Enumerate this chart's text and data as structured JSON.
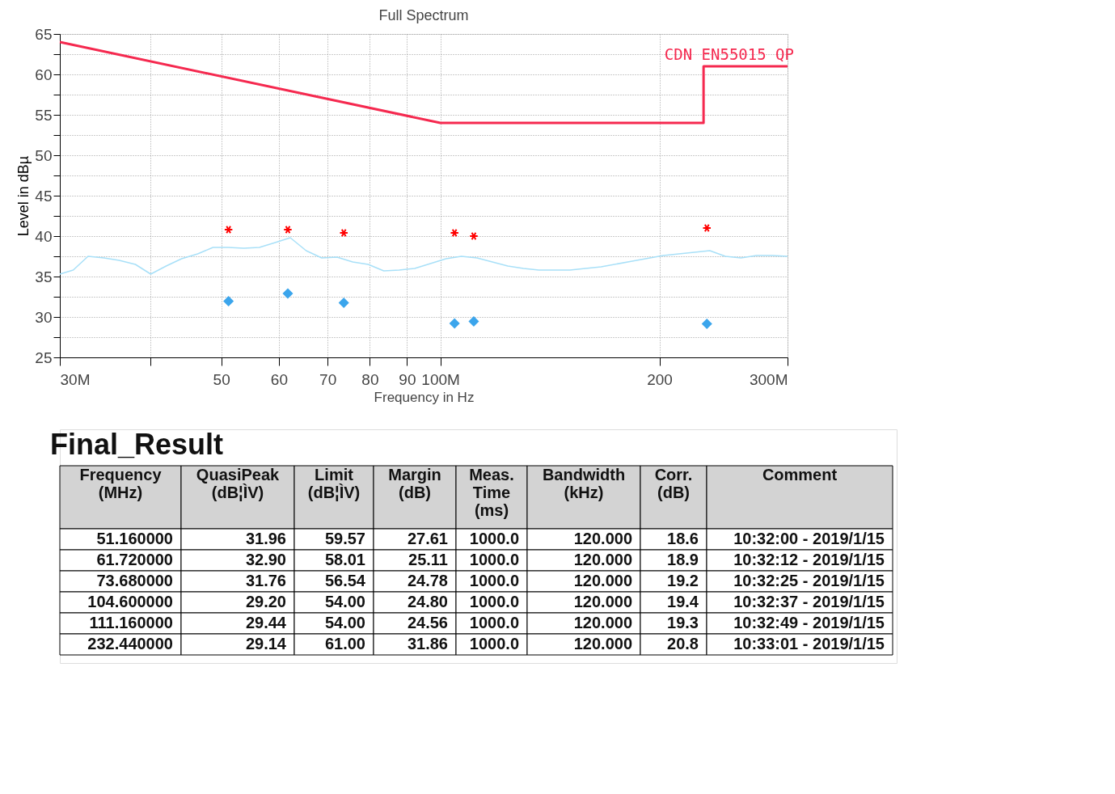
{
  "chart_data": {
    "type": "line",
    "title": "Full Spectrum",
    "xlabel": "Frequency in Hz",
    "ylabel": "Level in dBµ",
    "log": "x",
    "grid": true,
    "legend": false,
    "xlim": [
      30,
      300
    ],
    "xticks": [
      {
        "value": 30,
        "label": "30M"
      },
      {
        "value": 40,
        "label": null
      },
      50,
      60,
      70,
      80,
      90,
      {
        "value": 100,
        "label": "100M"
      },
      200,
      {
        "value": 300,
        "label": "300M"
      }
    ],
    "ylim": [
      25,
      65
    ],
    "yticks": [
      25,
      {
        "value": 27.5,
        "label": null
      },
      30,
      {
        "value": 32.5,
        "label": null
      },
      35,
      {
        "value": 37.5,
        "label": null
      },
      40,
      {
        "value": 42.5,
        "label": null
      },
      45,
      {
        "value": 47.5,
        "label": null
      },
      50,
      {
        "value": 52.5,
        "label": null
      },
      55,
      {
        "value": 57.5,
        "label": null
      },
      60,
      {
        "value": 62.5,
        "label": null
      },
      65
    ],
    "series": [
      {
        "name": "CDN EN55015 QP",
        "color": "#f5294f",
        "x": [
          30,
          100,
          230,
          230,
          300
        ],
        "values": [
          64,
          54,
          54,
          61,
          61
        ]
      },
      {
        "color": "#a8e0f8",
        "x": [
          30.0,
          31.3,
          32.8,
          34.5,
          36.2,
          38.1,
          40.0,
          42.0,
          44.1,
          46.4,
          48.7,
          51.1,
          53.7,
          56.4,
          59.3,
          62.2,
          65.4,
          68.7,
          72.1,
          75.8,
          79.6,
          83.6,
          87.8,
          92.2,
          96.9,
          101.8,
          106.9,
          112.3,
          117.9,
          123.8,
          130.1,
          136.6,
          150.7,
          166.3,
          183.5,
          202.5,
          223.4,
          234.6,
          246.4,
          258.9,
          271.9,
          285.7,
          300.0
        ],
        "values": [
          35.3,
          35.8,
          37.5,
          37.3,
          37.0,
          36.5,
          35.3,
          36.3,
          37.2,
          37.8,
          38.6,
          38.6,
          38.5,
          38.6,
          39.2,
          39.8,
          38.2,
          37.3,
          37.4,
          36.8,
          36.5,
          35.7,
          35.8,
          36.0,
          36.6,
          37.2,
          37.5,
          37.3,
          36.8,
          36.3,
          36.0,
          35.8,
          35.8,
          36.2,
          36.9,
          37.6,
          38.0,
          38.2,
          37.5,
          37.3,
          37.6,
          37.6,
          37.5
        ]
      },
      {
        "type": "scatter",
        "marker": "cross",
        "color": "#ff0000",
        "x": [
          51.16,
          61.72,
          73.68,
          104.6,
          111.16,
          232.44
        ],
        "values": [
          40.8,
          40.8,
          40.4,
          40.4,
          40.0,
          41.0
        ]
      },
      {
        "type": "scatter",
        "marker": "diamond",
        "color": "#3ba5ec",
        "x": [
          51.16,
          61.72,
          73.68,
          104.6,
          111.16,
          232.44
        ],
        "values": [
          31.96,
          32.9,
          31.76,
          29.2,
          29.44,
          29.14
        ]
      }
    ],
    "annotations": [
      "Final_Result",
      "Frequency\n(MHz)",
      "QuasiPeak\n(dB¦ÌV)",
      "Limit\n(dB¦ÌV)",
      "Margin\n(dB)",
      "Meas.\nTime\n(ms)",
      "Bandwidth\n(kHz)",
      "Corr.\n(dB)",
      "Comment",
      "51.160000",
      "31.96",
      "59.57",
      "27.61",
      "1000.0",
      "120.000",
      "18.6",
      "10:32:00 - 2019/1/15",
      "61.720000",
      "32.90",
      "58.01",
      "25.11",
      "1000.0",
      "120.000",
      "18.9",
      "10:32:12 - 2019/1/15",
      "73.680000",
      "31.76",
      "56.54",
      "24.78",
      "1000.0",
      "120.000",
      "19.2",
      "10:32:25 - 2019/1/15",
      "104.600000",
      "29.20",
      "54.00",
      "24.80",
      "1000.0",
      "120.000",
      "19.4",
      "10:32:37 - 2019/1/15",
      "111.160000",
      "29.44",
      "54.00",
      "24.56",
      "1000.0",
      "120.000",
      "19.3",
      "10:32:49 - 2019/1/15",
      "232.440000",
      "29.14",
      "61.00",
      "31.86",
      "1000.0",
      "120.000",
      "20.8",
      "10:33:01 - 2019/1/15"
    ]
  }
}
